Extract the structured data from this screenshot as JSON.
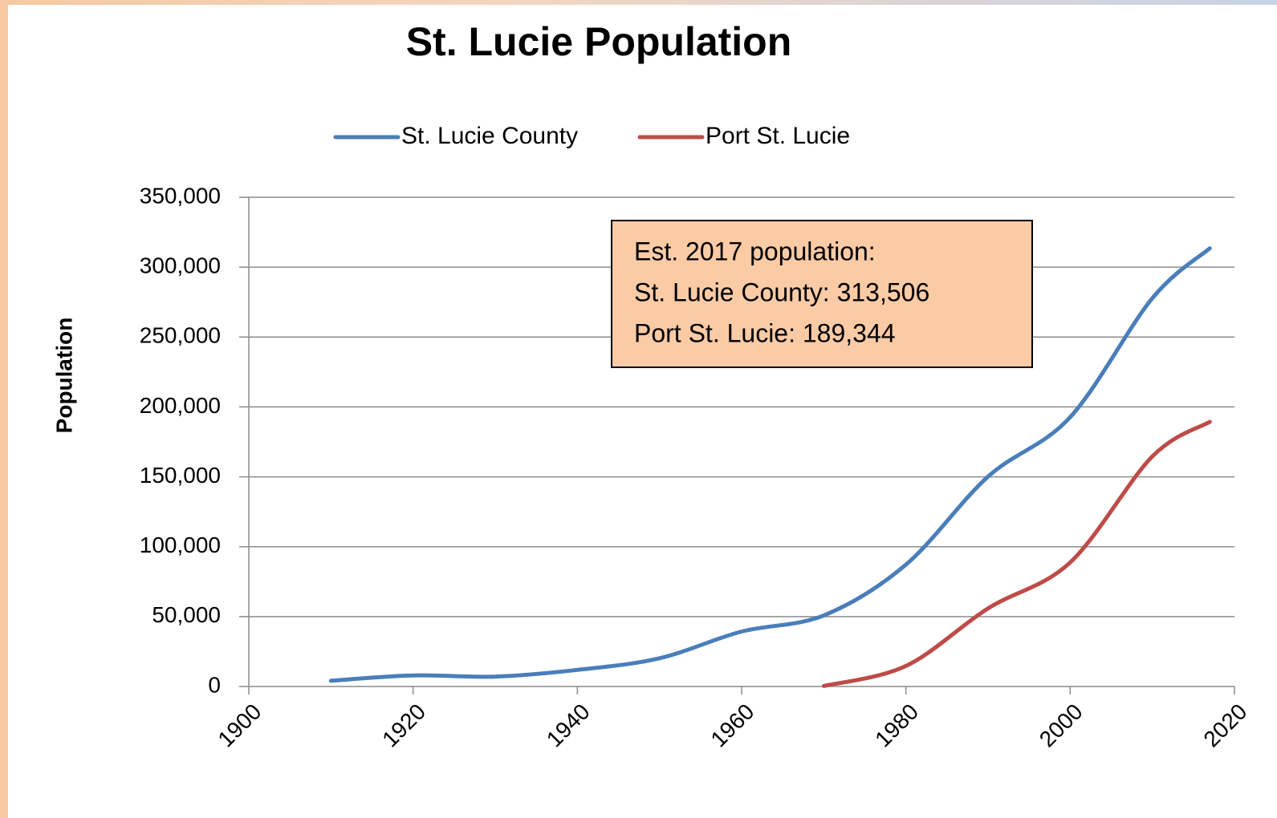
{
  "chart_data": {
    "type": "line",
    "title": "St. Lucie Population",
    "y_label": "Population",
    "x": [
      1910,
      1920,
      1930,
      1940,
      1950,
      1960,
      1970,
      1980,
      1990,
      2000,
      2010,
      2017
    ],
    "series": [
      {
        "name": "St. Lucie County",
        "color": "#4a7ebb",
        "values": [
          4075,
          7886,
          7057,
          11871,
          20180,
          39294,
          50836,
          87182,
          150171,
          192695,
          277789,
          313506
        ]
      },
      {
        "name": "Port St. Lucie",
        "color": "#be4b48",
        "values": [
          null,
          null,
          null,
          null,
          null,
          null,
          330,
          14690,
          55866,
          88769,
          164603,
          189344
        ]
      }
    ],
    "xlim": [
      1900,
      2020
    ],
    "xticks": [
      1900,
      1920,
      1940,
      1960,
      1980,
      2000,
      2020
    ],
    "ylim": [
      0,
      350000
    ],
    "yticks": [
      0,
      {
        "value": 50000,
        "label": "50,000"
      },
      {
        "value": 100000,
        "label": "100,000"
      },
      {
        "value": 150000,
        "label": "150,000"
      },
      {
        "value": 200000,
        "label": "200,000"
      },
      {
        "value": 250000,
        "label": "250,000"
      },
      {
        "value": 300000,
        "label": "300,000"
      },
      {
        "value": 350000,
        "label": "350,000"
      }
    ],
    "grid": true,
    "legend": "top",
    "annotation": [
      "Est. 2017 population:",
      "St. Lucie County: 313,506",
      "Port St. Lucie: 189,344"
    ]
  }
}
